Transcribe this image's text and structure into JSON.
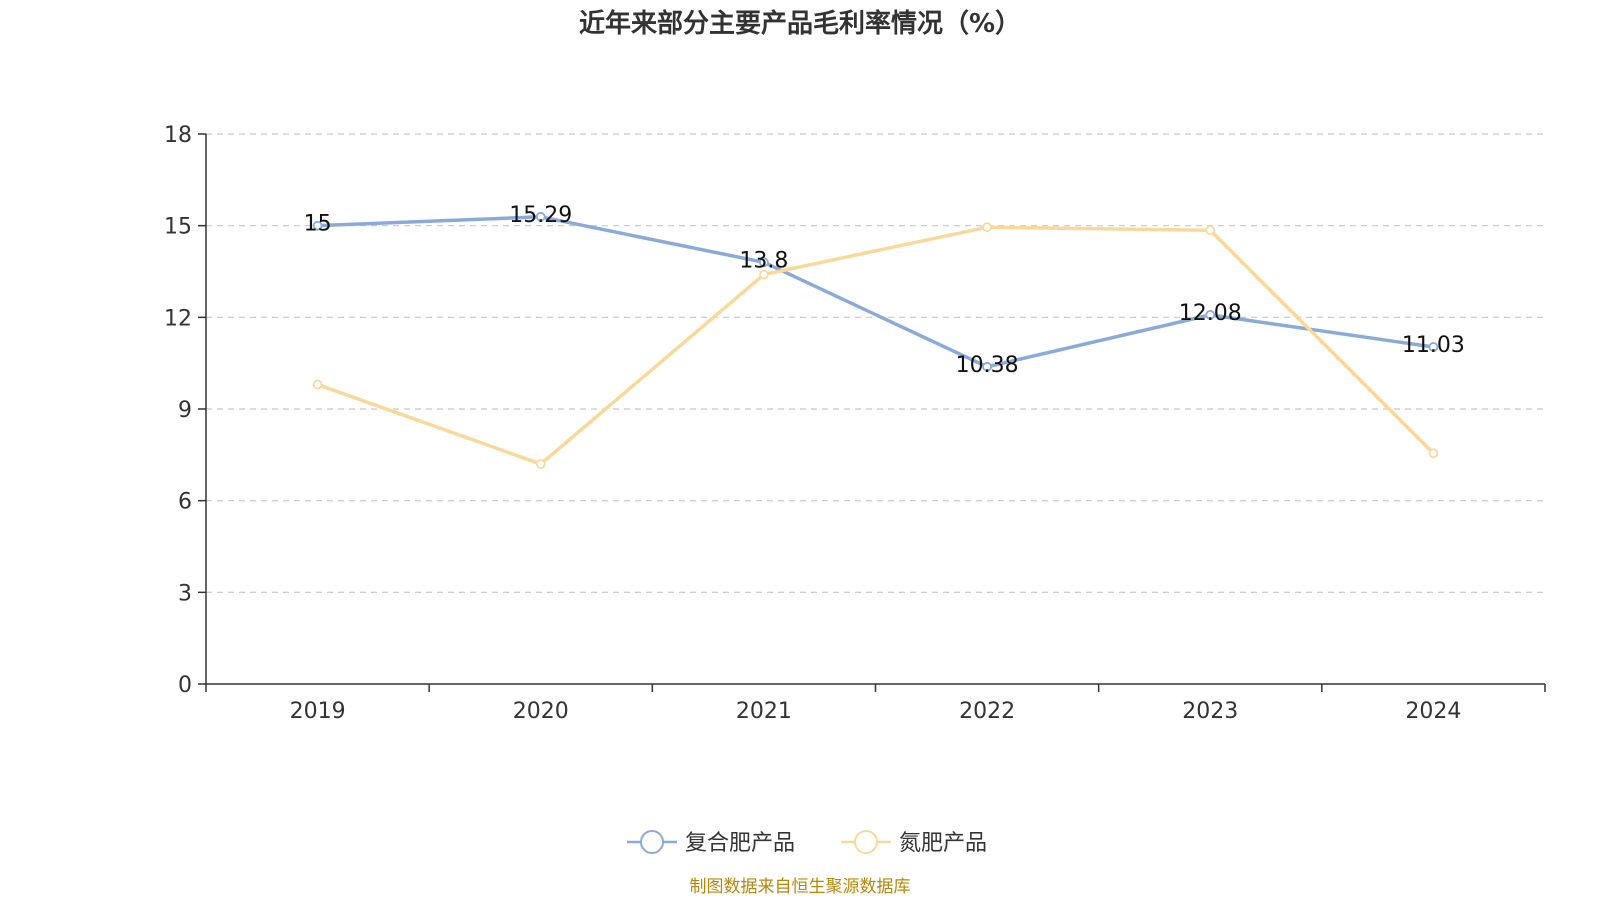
{
  "chart_data": {
    "type": "line",
    "title": "近年来部分主要产品毛利率情况（%）",
    "categories": [
      "2019",
      "2020",
      "2021",
      "2022",
      "2023",
      "2024"
    ],
    "ylim": [
      0,
      18
    ],
    "yticks": [
      0,
      3,
      6,
      9,
      12,
      15,
      18
    ],
    "grid": true,
    "legend_position": "bottom-center",
    "series": [
      {
        "name": "复合肥产品",
        "color": "#8aaad8",
        "values": [
          15,
          15.29,
          13.8,
          10.38,
          12.08,
          11.03
        ],
        "labels": [
          "15",
          "15.29",
          "13.8",
          "10.38",
          "12.08",
          "11.03"
        ]
      },
      {
        "name": "氮肥产品",
        "color": "#f9d99b",
        "values": [
          9.8,
          7.2,
          13.4,
          14.95,
          14.85,
          7.55
        ],
        "labels": []
      }
    ],
    "source": "制图数据来自恒生聚源数据库"
  }
}
